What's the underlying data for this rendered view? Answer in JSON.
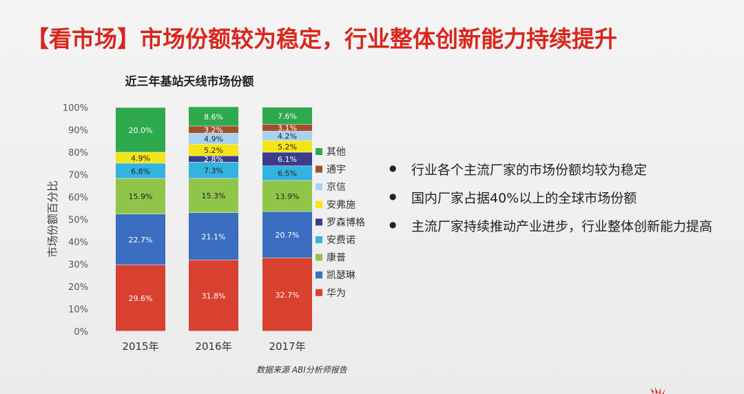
{
  "slide": {
    "title": "【看市场】市场份额较为稳定，行业整体创新能力持续提升",
    "source": "数据来源 ABI分析师报告",
    "bullets": [
      "行业各个主流厂家的市场份额均较为稳定",
      "国内厂家占据40%以上的全球市场份额",
      "主流厂家持续推动产业进步，行业整体创新能力提高"
    ]
  },
  "colors": {
    "title": "#d9261c",
    "华为": "#d8412f",
    "凯瑟琳": "#3b6dc0",
    "康普": "#8fc64a",
    "安费诺": "#33b3e0",
    "罗森博格": "#3c3d8a",
    "安弗施": "#f6e516",
    "京信": "#a9d2ee",
    "通宇": "#a0512c",
    "其他": "#2ea94d"
  },
  "chart_data": {
    "type": "bar",
    "stacked": true,
    "title": "近三年基站天线市场份额",
    "xlabel": "",
    "ylabel": "市场份额百分比",
    "ylim": [
      0,
      100
    ],
    "yticks": [
      "0%",
      "10%",
      "20%",
      "30%",
      "40%",
      "50%",
      "60%",
      "70%",
      "80%",
      "90%",
      "100%"
    ],
    "grid": false,
    "legend_position": "right",
    "categories": [
      "2015年",
      "2016年",
      "2017年"
    ],
    "series": [
      {
        "name": "华为",
        "values": [
          29.6,
          31.8,
          32.7
        ],
        "labels": [
          "29.6%",
          "31.8%",
          "32.7%"
        ]
      },
      {
        "name": "凯瑟琳",
        "values": [
          22.7,
          21.1,
          20.7
        ],
        "labels": [
          "22.7%",
          "21.1%",
          "20.7%"
        ]
      },
      {
        "name": "康普",
        "values": [
          15.9,
          15.3,
          13.9
        ],
        "labels": [
          "15.9%",
          "15.3%",
          "13.9%"
        ]
      },
      {
        "name": "安费诺",
        "values": [
          6.8,
          7.3,
          6.5
        ],
        "labels": [
          "6.8%",
          "7.3%",
          "6.5%"
        ]
      },
      {
        "name": "罗森博格",
        "values": [
          0,
          2.8,
          6.1
        ],
        "labels": [
          "",
          "2.8%",
          "6.1%"
        ]
      },
      {
        "name": "安弗施",
        "values": [
          4.9,
          5.2,
          5.2
        ],
        "labels": [
          "4.9%",
          "5.2%",
          "5.2%"
        ]
      },
      {
        "name": "京信",
        "values": [
          0,
          4.9,
          4.2
        ],
        "labels": [
          "",
          "4.9%",
          "4.2%"
        ]
      },
      {
        "name": "通宇",
        "values": [
          0,
          3.2,
          3.1
        ],
        "labels": [
          "",
          "3.2%",
          "3.1%"
        ]
      },
      {
        "name": "其他",
        "values": [
          20.0,
          8.6,
          7.6
        ],
        "labels": [
          "20.0%",
          "8.6%",
          "7.6%"
        ]
      }
    ],
    "legend_order": [
      "其他",
      "通宇",
      "京信",
      "安弗施",
      "罗森博格",
      "安费诺",
      "康普",
      "凯瑟琳",
      "华为"
    ]
  }
}
